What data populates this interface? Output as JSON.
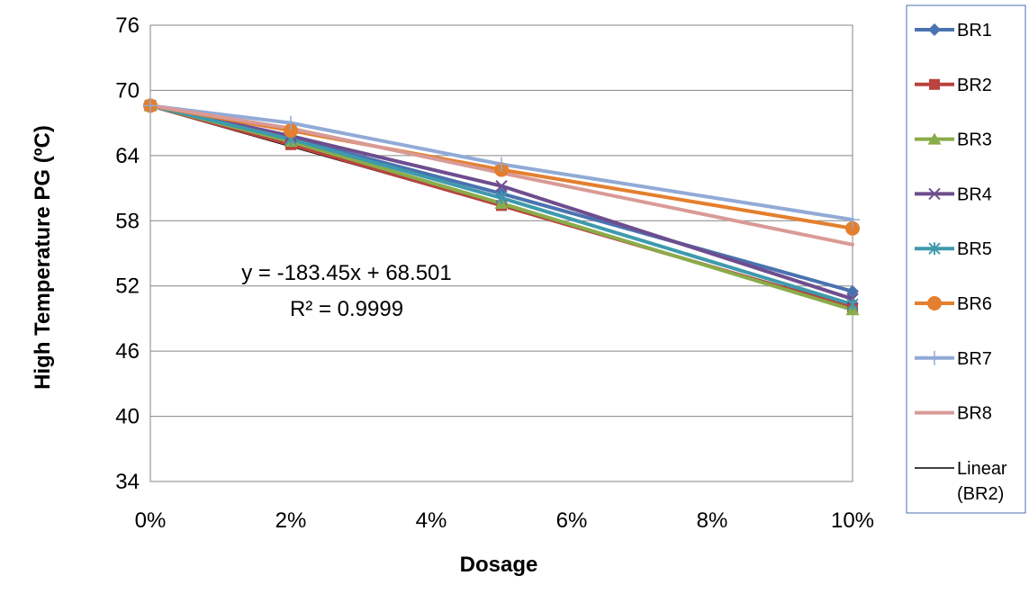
{
  "chart_data": {
    "type": "line",
    "title": "",
    "xlabel": "Dosage",
    "ylabel": "High Temperature PG (ºC)",
    "x": [
      0,
      0.02,
      0.05,
      0.1
    ],
    "x_tick_labels": [
      "0%",
      "2%",
      "4%",
      "6%",
      "8%",
      "10%"
    ],
    "x_ticks": [
      0,
      0.02,
      0.04,
      0.06,
      0.08,
      0.1
    ],
    "xlim": [
      0,
      0.1
    ],
    "y_ticks": [
      34,
      40,
      46,
      52,
      58,
      64,
      70,
      76
    ],
    "y_tick_labels": [
      "34",
      "40",
      "46",
      "52",
      "58",
      "64",
      "70",
      "76"
    ],
    "ylim": [
      34,
      76
    ],
    "grid": "horizontal",
    "legend_position": "right",
    "series": [
      {
        "name": "BR1",
        "values": [
          68.6,
          65.6,
          60.5,
          51.5
        ],
        "color": "#4a72b0",
        "marker": "diamond"
      },
      {
        "name": "BR2",
        "values": [
          68.6,
          65.0,
          59.4,
          50.0
        ],
        "color": "#b9433e",
        "marker": "square"
      },
      {
        "name": "BR3",
        "values": [
          68.6,
          65.3,
          59.6,
          49.8
        ],
        "color": "#8aac4a",
        "marker": "triangle"
      },
      {
        "name": "BR4",
        "values": [
          68.6,
          65.8,
          61.2,
          50.8
        ],
        "color": "#6e4d8e",
        "marker": "x"
      },
      {
        "name": "BR5",
        "values": [
          68.6,
          65.5,
          60.1,
          50.3
        ],
        "color": "#3e9aac",
        "marker": "asterisk"
      },
      {
        "name": "BR6",
        "values": [
          68.6,
          66.3,
          62.7,
          57.3
        ],
        "color": "#e37f2e",
        "marker": "circle"
      },
      {
        "name": "BR7",
        "values": [
          68.6,
          67.0,
          63.2,
          58.1
        ],
        "color": "#91aad6",
        "marker": "plus"
      },
      {
        "name": "BR8",
        "values": [
          68.6,
          66.5,
          62.4,
          55.8
        ],
        "color": "#d99a96",
        "marker": "none"
      }
    ],
    "trendline": {
      "name": "Linear (BR2)",
      "slope": -183.45,
      "intercept": 68.501,
      "color": "#000000"
    },
    "annotations": {
      "equation": "y = -183.45x + 68.501",
      "r_squared": "R² = 0.9999"
    }
  }
}
